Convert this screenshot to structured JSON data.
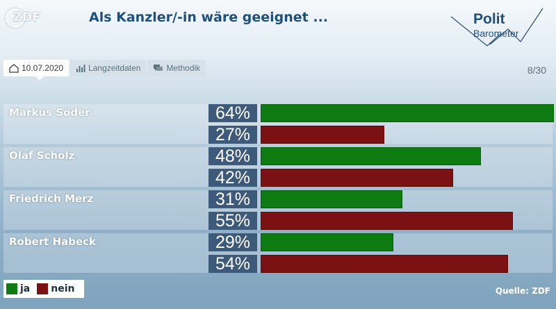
{
  "header": {
    "channel_logo": "ZDF",
    "title": "Als Kanzler/-in wäre geeignet ...",
    "brand_line1": "Polit",
    "brand_line2": "Barometer"
  },
  "tabs": [
    {
      "label": "10.07.2020",
      "icon": "home-icon",
      "active": true
    },
    {
      "label": "Langzeitdaten",
      "icon": "bar-chart-icon",
      "active": false
    },
    {
      "label": "Methodik",
      "icon": "speech-bubble-icon",
      "active": false
    }
  ],
  "page_counter": "8/30",
  "colors": {
    "ja": "#0d7a12",
    "nein": "#7a1112",
    "label_box": "#3e5a7b",
    "title": "#1f4f7c"
  },
  "legend": [
    {
      "label": "ja",
      "color": "#0d7a12"
    },
    {
      "label": "nein",
      "color": "#7a1112"
    }
  ],
  "source": "Quelle: ZDF",
  "chart_data": {
    "type": "bar",
    "orientation": "horizontal",
    "title": "Als Kanzler/-in wäre geeignet ...",
    "categories": [
      "Markus Söder",
      "Olaf Scholz",
      "Friedrich Merz",
      "Robert Habeck"
    ],
    "series": [
      {
        "name": "ja",
        "values": [
          64,
          48,
          31,
          29
        ]
      },
      {
        "name": "nein",
        "values": [
          27,
          42,
          55,
          54
        ]
      }
    ],
    "value_labels": {
      "ja": [
        "64%",
        "48%",
        "31%",
        "29%"
      ],
      "nein": [
        "27%",
        "42%",
        "55%",
        "54%"
      ]
    },
    "xlim": [
      0,
      64
    ],
    "unit": "%",
    "legend_position": "bottom-left",
    "grid": false
  }
}
